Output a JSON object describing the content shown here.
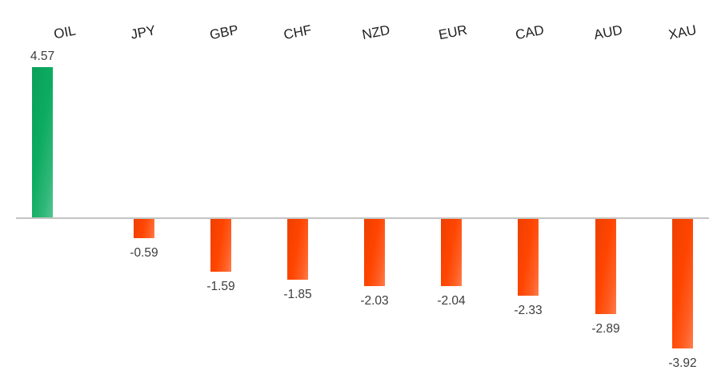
{
  "chart_data": {
    "type": "bar",
    "categories": [
      "OIL",
      "JPY",
      "GBP",
      "CHF",
      "NZD",
      "EUR",
      "CAD",
      "AUD",
      "XAU"
    ],
    "values": [
      4.57,
      -0.59,
      -1.59,
      -1.85,
      -2.03,
      -2.04,
      -2.33,
      -2.89,
      -3.92
    ],
    "data_labels": [
      "4.57",
      "-0.59",
      "-1.59",
      "-1.85",
      "-2.03",
      "-2.04",
      "-2.33",
      "-2.89",
      "-3.92"
    ],
    "title": "",
    "xlabel": "",
    "ylabel": "",
    "ylim": [
      -4.5,
      5.2
    ],
    "grid": false,
    "legend": false,
    "background_color": "#FFFFFF",
    "axis_line_color": "#C3C3C3",
    "positive_color": "#0CAB61",
    "negative_color": "#FF4500",
    "category_label_color": "#1F1F1F",
    "value_label_color": "#3D3D3D"
  }
}
